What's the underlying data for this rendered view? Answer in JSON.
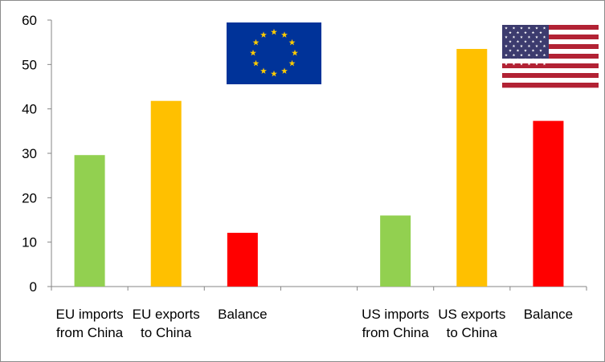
{
  "chart_data": {
    "type": "bar",
    "categories": [
      [
        "EU imports",
        "from China"
      ],
      [
        "EU exports",
        "to China"
      ],
      [
        "Balance"
      ],
      [],
      [
        "US imports",
        "from China"
      ],
      [
        "US exports",
        "to China"
      ],
      [
        "Balance"
      ]
    ],
    "values": [
      29.6,
      41.8,
      12.1,
      null,
      16.0,
      53.5,
      37.3
    ],
    "bar_colors": [
      "#92d050",
      "#ffc000",
      "#ff0000",
      null,
      "#92d050",
      "#ffc000",
      "#ff0000"
    ],
    "ylim": [
      0,
      60
    ],
    "yticks": [
      0,
      10,
      20,
      30,
      40,
      50,
      60
    ],
    "grid": false,
    "legend": "none",
    "title": "",
    "xlabel": "",
    "ylabel": ""
  },
  "flags": {
    "eu": {
      "icon": "eu-flag-icon",
      "background": "#003399",
      "star": "#ffcc00"
    },
    "us": {
      "icon": "us-flag-icon",
      "stripe_red": "#b22234",
      "canton": "#3c3b6e"
    }
  }
}
